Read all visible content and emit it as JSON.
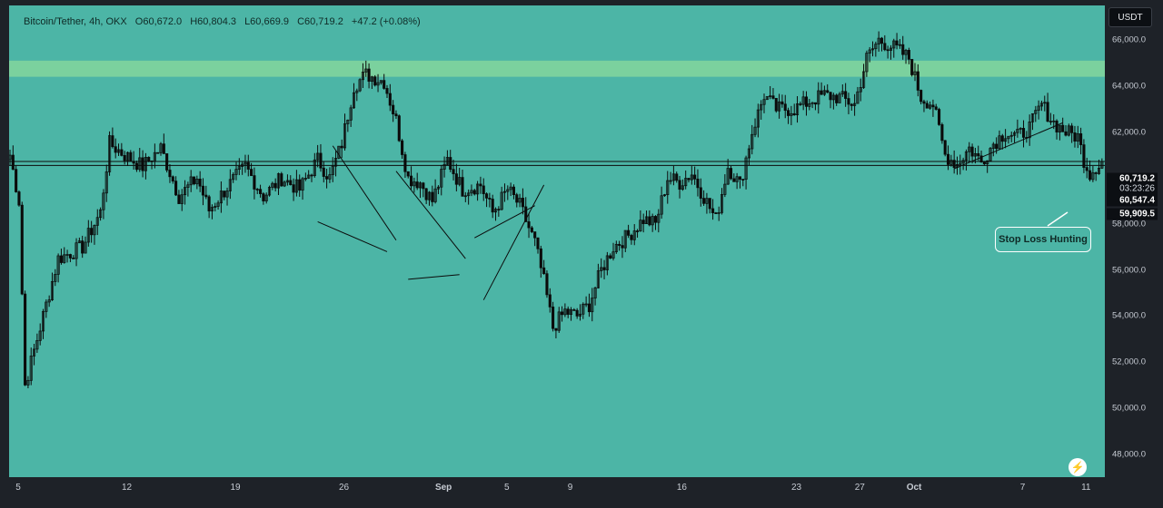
{
  "legend": {
    "symbol": "Bitcoin/Tether, 4h, OKX",
    "open": "O60,672.0",
    "high": "H60,804.3",
    "low": "L60,669.9",
    "close": "C60,719.2",
    "change": "+47.2 (+0.08%)"
  },
  "currency_label": "USDT",
  "annotation": "Stop Loss Hunting",
  "price_labels": {
    "last": "60,719.2",
    "countdown": "03:23:26",
    "line_level": "60,547.4",
    "hunt_low": "59,909.5"
  },
  "colors": {
    "background": "#4cb5a6",
    "candles": "#0b0b0b",
    "zone": "#84d69c",
    "axis_bg": "#1e2228",
    "axis_text": "#c6cbd3"
  },
  "chart_data": {
    "type": "candlestick",
    "x_tick_labels": [
      "5",
      "12",
      "19",
      "26",
      "Sep",
      "5",
      "9",
      "16",
      "23",
      "27",
      "Oct",
      "7",
      "11"
    ],
    "y_tick_labels": [
      "48,000.0",
      "50,000.0",
      "52,000.0",
      "54,000.0",
      "56,000.0",
      "58,000.0",
      "60,000.0",
      "62,000.0",
      "64,000.0",
      "66,000.0"
    ],
    "ylim": [
      47000,
      67500
    ],
    "resistance_zone": [
      64400,
      65100
    ],
    "horizontal_lines": [
      60719.2,
      60547.4
    ],
    "path_keypoints": [
      {
        "i": 0,
        "p": 61000
      },
      {
        "i": 3,
        "p": 59000
      },
      {
        "i": 5,
        "p": 51000
      },
      {
        "i": 10,
        "p": 53500
      },
      {
        "i": 16,
        "p": 56500
      },
      {
        "i": 24,
        "p": 57000
      },
      {
        "i": 30,
        "p": 58500
      },
      {
        "i": 33,
        "p": 61500
      },
      {
        "i": 38,
        "p": 61000
      },
      {
        "i": 44,
        "p": 60500
      },
      {
        "i": 50,
        "p": 61300
      },
      {
        "i": 56,
        "p": 59200
      },
      {
        "i": 62,
        "p": 60000
      },
      {
        "i": 66,
        "p": 58600
      },
      {
        "i": 72,
        "p": 59600
      },
      {
        "i": 78,
        "p": 60500
      },
      {
        "i": 84,
        "p": 59200
      },
      {
        "i": 90,
        "p": 60000
      },
      {
        "i": 96,
        "p": 59500
      },
      {
        "i": 102,
        "p": 60800
      },
      {
        "i": 106,
        "p": 60000
      },
      {
        "i": 110,
        "p": 61500
      },
      {
        "i": 114,
        "p": 64000
      },
      {
        "i": 118,
        "p": 64500
      },
      {
        "i": 124,
        "p": 64200
      },
      {
        "i": 128,
        "p": 62500
      },
      {
        "i": 132,
        "p": 60000
      },
      {
        "i": 136,
        "p": 59800
      },
      {
        "i": 140,
        "p": 59000
      },
      {
        "i": 145,
        "p": 60800
      },
      {
        "i": 150,
        "p": 59500
      },
      {
        "i": 156,
        "p": 59700
      },
      {
        "i": 160,
        "p": 58500
      },
      {
        "i": 165,
        "p": 59500
      },
      {
        "i": 169,
        "p": 58800
      },
      {
        "i": 174,
        "p": 57200
      },
      {
        "i": 177,
        "p": 55500
      },
      {
        "i": 180,
        "p": 53500
      },
      {
        "i": 184,
        "p": 54200
      },
      {
        "i": 188,
        "p": 54000
      },
      {
        "i": 192,
        "p": 54500
      },
      {
        "i": 196,
        "p": 56000
      },
      {
        "i": 200,
        "p": 57000
      },
      {
        "i": 205,
        "p": 57500
      },
      {
        "i": 210,
        "p": 58200
      },
      {
        "i": 214,
        "p": 58000
      },
      {
        "i": 218,
        "p": 60000
      },
      {
        "i": 222,
        "p": 59800
      },
      {
        "i": 226,
        "p": 60200
      },
      {
        "i": 230,
        "p": 59200
      },
      {
        "i": 234,
        "p": 58200
      },
      {
        "i": 238,
        "p": 60500
      },
      {
        "i": 242,
        "p": 59700
      },
      {
        "i": 246,
        "p": 62000
      },
      {
        "i": 250,
        "p": 63600
      },
      {
        "i": 254,
        "p": 63000
      },
      {
        "i": 260,
        "p": 63000
      },
      {
        "i": 266,
        "p": 63400
      },
      {
        "i": 270,
        "p": 63600
      },
      {
        "i": 275,
        "p": 63500
      },
      {
        "i": 280,
        "p": 63200
      },
      {
        "i": 284,
        "p": 65200
      },
      {
        "i": 288,
        "p": 66000
      },
      {
        "i": 294,
        "p": 65600
      },
      {
        "i": 298,
        "p": 65200
      },
      {
        "i": 302,
        "p": 63500
      },
      {
        "i": 306,
        "p": 63200
      },
      {
        "i": 310,
        "p": 61000
      },
      {
        "i": 314,
        "p": 60600
      },
      {
        "i": 318,
        "p": 61300
      },
      {
        "i": 322,
        "p": 60700
      },
      {
        "i": 326,
        "p": 61500
      },
      {
        "i": 330,
        "p": 62000
      },
      {
        "i": 334,
        "p": 61800
      },
      {
        "i": 338,
        "p": 62200
      },
      {
        "i": 342,
        "p": 63200
      },
      {
        "i": 346,
        "p": 62400
      },
      {
        "i": 350,
        "p": 62000
      },
      {
        "i": 354,
        "p": 61800
      },
      {
        "i": 356,
        "p": 60800
      },
      {
        "i": 358,
        "p": 60200
      },
      {
        "i": 360,
        "p": 60500
      },
      {
        "i": 362,
        "p": 60700
      }
    ],
    "trendlines": [
      {
        "from": {
          "i": 102,
          "p": 58100
        },
        "to": {
          "i": 125,
          "p": 56800
        }
      },
      {
        "from": {
          "i": 107,
          "p": 61400
        },
        "to": {
          "i": 128,
          "p": 57300
        }
      },
      {
        "from": {
          "i": 132,
          "p": 55600
        },
        "to": {
          "i": 149,
          "p": 55800
        }
      },
      {
        "from": {
          "i": 128,
          "p": 60300
        },
        "to": {
          "i": 151,
          "p": 56500
        }
      },
      {
        "from": {
          "i": 157,
          "p": 54700
        },
        "to": {
          "i": 177,
          "p": 59700
        }
      },
      {
        "from": {
          "i": 154,
          "p": 57400
        },
        "to": {
          "i": 174,
          "p": 58800
        }
      },
      {
        "from": {
          "i": 313,
          "p": 60400
        },
        "to": {
          "i": 349,
          "p": 62400
        }
      }
    ]
  }
}
